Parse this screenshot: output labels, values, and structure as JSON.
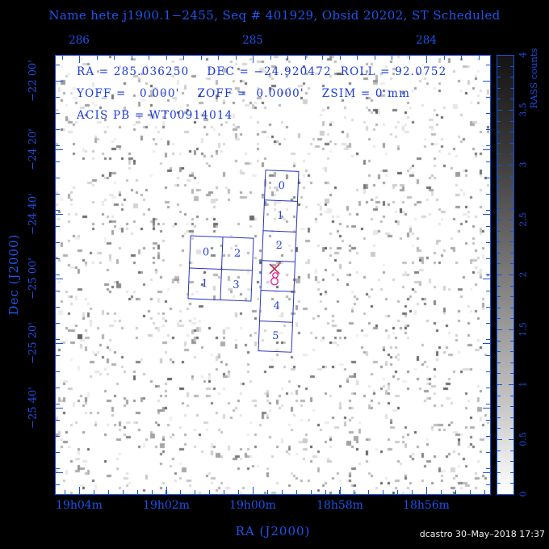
{
  "title": "Name hete j1900.1−2455, Seq # 401929, Obsid 20202, ST Scheduled",
  "info": {
    "line1": "RA = 285.036250    DEC = −24.920472  ROLL = 92.0752",
    "line2": "YOFF =   0.000'    ZOFF =  0.0000'    ZSIM = 0 mm",
    "line3": "ACIS PB = WT00914014"
  },
  "axes": {
    "x_top": {
      "tick_labels": [
        "286",
        "285",
        "284"
      ]
    },
    "x_bottom": {
      "tick_labels": [
        "19h04m",
        "19h02m",
        "19h00m",
        "18h58m",
        "18h56m"
      ],
      "axis_label": "RA (J2000)"
    },
    "y_left": {
      "tick_labels": [
        "−22 00'",
        "−24 20'",
        "−24 40'",
        "−25 00'",
        "−25 20'",
        "−25 40'"
      ],
      "axis_label": "Dec (J2000)"
    }
  },
  "colorbar": {
    "label": "RASS counts",
    "tick_labels": [
      "4",
      "3.5",
      "3",
      "2.5",
      "2",
      "1.5",
      "1",
      "0.5",
      "0"
    ],
    "top_color": "#141414",
    "bottom_color": "#ffffff"
  },
  "detectors": {
    "acis_s_chips": [
      "0",
      "1",
      "2",
      "",
      "4",
      "5"
    ],
    "acis_i_chips": [
      "0",
      "2",
      "1",
      "3"
    ]
  },
  "marker": {
    "type": "aimpoint-x-with-target-circles",
    "x_color": "#c22850",
    "circle_color": "#e8289a"
  },
  "footer": {
    "credit": "dcastro 30–May–2018 17:37"
  },
  "colors": {
    "text_blue": "#1c52e8",
    "frame_blue": "#1450e0",
    "chip_blue": "#2536c0",
    "background": "#000000",
    "plot_background": "#ffffff"
  }
}
